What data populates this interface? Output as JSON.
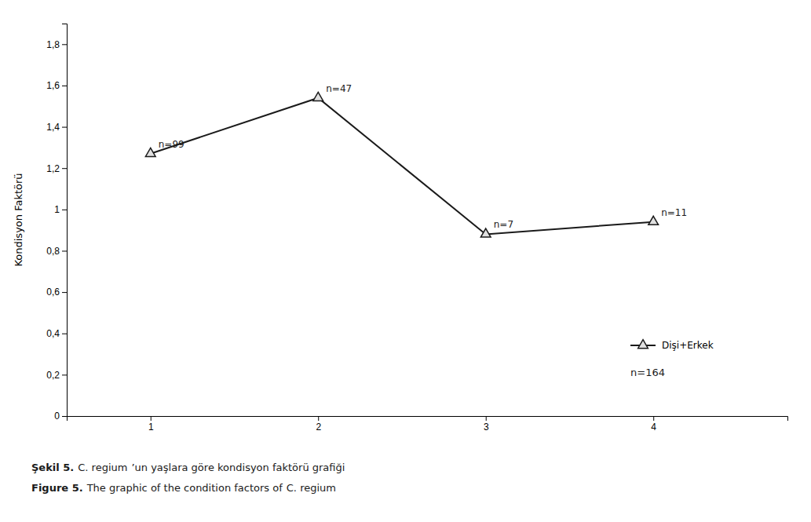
{
  "chart_data": {
    "type": "line",
    "ylabel": "Kondisyon Faktörü",
    "x": [
      1,
      2,
      3,
      4
    ],
    "series": [
      {
        "name": "Dişi+Erkek",
        "color": "#1a1a1a",
        "marker": "triangle",
        "values": [
          1.27,
          1.54,
          0.88,
          0.94
        ]
      }
    ],
    "annotations": [
      {
        "x": 1,
        "y": 1.27,
        "label": "n=99"
      },
      {
        "x": 2,
        "y": 1.54,
        "label": "n=47"
      },
      {
        "x": 3,
        "y": 0.88,
        "label": "n=7"
      },
      {
        "x": 4,
        "y": 0.94,
        "label": "n=11"
      }
    ],
    "legend": "lower right",
    "legend_note": "n=164",
    "caption": [
      [
        "Şekil 5.",
        "C. regium",
        "’un yaşlara göre kondisyon faktörü grafiği"
      ],
      [
        "Figure 5.",
        "The graphic of the condition factors of",
        "C. regium"
      ]
    ],
    "ylim": [
      0,
      1.9
    ],
    "yticks": [
      0,
      {
        "value": 0.2,
        "label": "0,2"
      },
      {
        "value": 0.4,
        "label": "0,4"
      },
      {
        "value": 0.6,
        "label": "0,6"
      },
      {
        "value": 0.8,
        "label": "0,8"
      },
      1,
      {
        "value": 1.2,
        "label": "1,2"
      },
      {
        "value": 1.4,
        "label": "1,4"
      },
      {
        "value": 1.6,
        "label": "1,6"
      },
      {
        "value": 1.8,
        "label": "1,8"
      }
    ],
    "xlim": [
      0.5,
      4.8
    ],
    "xticks": [
      1,
      2,
      3,
      4
    ],
    "grid": false
  }
}
